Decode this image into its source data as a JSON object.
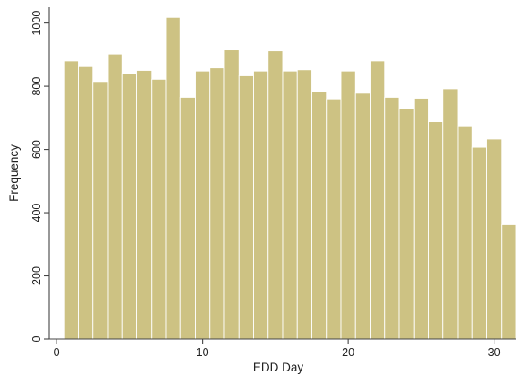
{
  "chart_data": {
    "type": "bar",
    "xlabel": "EDD Day",
    "ylabel": "Frequency",
    "x": [
      1,
      2,
      3,
      4,
      5,
      6,
      7,
      8,
      9,
      10,
      11,
      12,
      13,
      14,
      15,
      16,
      17,
      18,
      19,
      20,
      21,
      22,
      23,
      24,
      25,
      26,
      27,
      28,
      29,
      30,
      31
    ],
    "values": [
      880,
      862,
      815,
      902,
      840,
      850,
      822,
      1018,
      765,
      848,
      858,
      915,
      833,
      848,
      912,
      848,
      852,
      782,
      760,
      848,
      778,
      880,
      765,
      730,
      762,
      688,
      792,
      672,
      607,
      633,
      362
    ],
    "xlim": [
      -0.5,
      31.5
    ],
    "ylim": [
      0,
      1050
    ],
    "xticks": [
      "0",
      "10",
      "20",
      "30"
    ],
    "yticks": [
      "0",
      "200",
      "400",
      "600",
      "800",
      "1000"
    ],
    "bar_color": "#cdc283",
    "grid": false,
    "legend": "none"
  }
}
